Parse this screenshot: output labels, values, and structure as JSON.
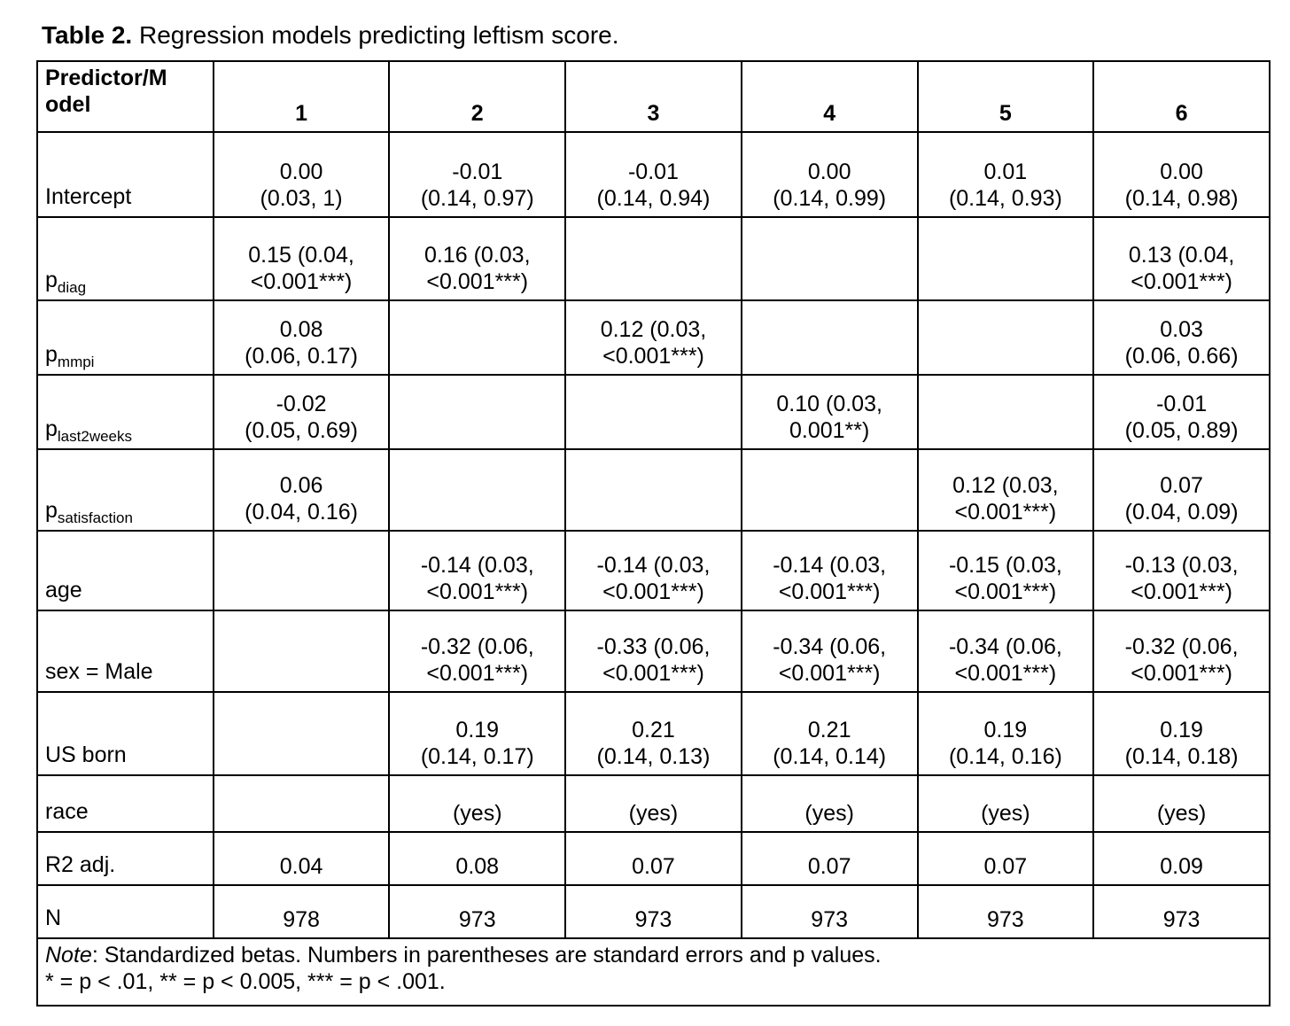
{
  "title": {
    "prefix": "Table 2.",
    "rest": " Regression models predicting leftism score."
  },
  "table": {
    "header": {
      "predictor": "Predictor/M\nodel",
      "models": [
        "1",
        "2",
        "3",
        "4",
        "5",
        "6"
      ]
    },
    "rows": [
      {
        "label": "Intercept",
        "sub": "",
        "values": [
          "0.00\n(0.03, 1)",
          "-0.01\n(0.14, 0.97)",
          "-0.01\n(0.14, 0.94)",
          "0.00\n(0.14, 0.99)",
          "0.01\n(0.14, 0.93)",
          "0.00\n(0.14, 0.98)"
        ]
      },
      {
        "label": "p",
        "sub": "diag",
        "values": [
          "0.15 (0.04,\n<0.001***)",
          "0.16 (0.03,\n<0.001***)",
          "",
          "",
          "",
          "0.13 (0.04,\n<0.001***)"
        ]
      },
      {
        "label": "p",
        "sub": "mmpi",
        "values": [
          "0.08\n(0.06, 0.17)",
          "",
          "0.12 (0.03,\n<0.001***)",
          "",
          "",
          "0.03\n(0.06, 0.66)"
        ]
      },
      {
        "label": "p",
        "sub": "last2weeks",
        "values": [
          "-0.02\n(0.05, 0.69)",
          "",
          "",
          "0.10 (0.03,\n0.001**)",
          "",
          "-0.01\n(0.05, 0.89)"
        ]
      },
      {
        "label": "p",
        "sub": "satisfaction",
        "values": [
          "0.06\n(0.04, 0.16)",
          "",
          "",
          "",
          "0.12 (0.03,\n<0.001***)",
          "0.07\n(0.04, 0.09)"
        ]
      },
      {
        "label": "age",
        "sub": "",
        "values": [
          "",
          "-0.14 (0.03,\n<0.001***)",
          "-0.14 (0.03,\n<0.001***)",
          "-0.14 (0.03,\n<0.001***)",
          "-0.15 (0.03,\n<0.001***)",
          "-0.13 (0.03,\n<0.001***)"
        ]
      },
      {
        "label": "sex = Male",
        "sub": "",
        "values": [
          "",
          "-0.32 (0.06,\n<0.001***)",
          "-0.33 (0.06,\n<0.001***)",
          "-0.34 (0.06,\n<0.001***)",
          "-0.34 (0.06,\n<0.001***)",
          "-0.32 (0.06,\n<0.001***)"
        ]
      },
      {
        "label": "US born",
        "sub": "",
        "values": [
          "",
          "0.19\n(0.14, 0.17)",
          "0.21\n(0.14, 0.13)",
          "0.21\n(0.14, 0.14)",
          "0.19\n(0.14, 0.16)",
          "0.19\n(0.14, 0.18)"
        ]
      },
      {
        "label": "race",
        "sub": "",
        "values": [
          "",
          "(yes)",
          "(yes)",
          "(yes)",
          "(yes)",
          "(yes)"
        ]
      },
      {
        "label": "R2 adj.",
        "sub": "",
        "values": [
          "0.04",
          "0.08",
          "0.07",
          "0.07",
          "0.07",
          "0.09"
        ]
      },
      {
        "label": "N",
        "sub": "",
        "values": [
          "978",
          "973",
          "973",
          "973",
          "973",
          "973"
        ]
      }
    ],
    "note": {
      "label": "Note",
      "line1_rest": ": Standardized betas. Numbers in parentheses are standard errors and p values.",
      "line2": "* = p < .01, ** = p < 0.005, *** = p < .001."
    }
  }
}
